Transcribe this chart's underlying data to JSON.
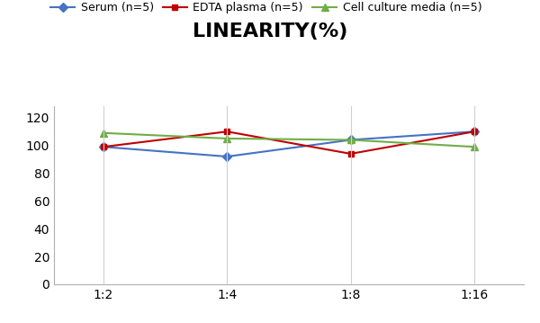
{
  "title": "LINEARITY(%)",
  "title_fontsize": 16,
  "title_fontweight": "bold",
  "x_labels": [
    "1:2",
    "1:4",
    "1:8",
    "1:16"
  ],
  "x_positions": [
    0,
    1,
    2,
    3
  ],
  "series": [
    {
      "label": "Serum (n=5)",
      "values": [
        99,
        92,
        104,
        110
      ],
      "color": "#4472C4",
      "marker": "D",
      "markersize": 5,
      "linewidth": 1.5
    },
    {
      "label": "EDTA plasma (n=5)",
      "values": [
        99,
        110,
        94,
        110
      ],
      "color": "#C00000",
      "marker": "s",
      "markersize": 5,
      "linewidth": 1.5
    },
    {
      "label": "Cell culture media (n=5)",
      "values": [
        109,
        105,
        104,
        99
      ],
      "color": "#70AD47",
      "marker": "^",
      "markersize": 6,
      "linewidth": 1.5
    }
  ],
  "ylim": [
    0,
    128
  ],
  "yticks": [
    0,
    20,
    40,
    60,
    80,
    100,
    120
  ],
  "background_color": "#ffffff",
  "grid_color": "#d0d0d0",
  "legend_fontsize": 9,
  "axis_fontsize": 10,
  "figsize": [
    6.0,
    3.59
  ],
  "dpi": 100
}
